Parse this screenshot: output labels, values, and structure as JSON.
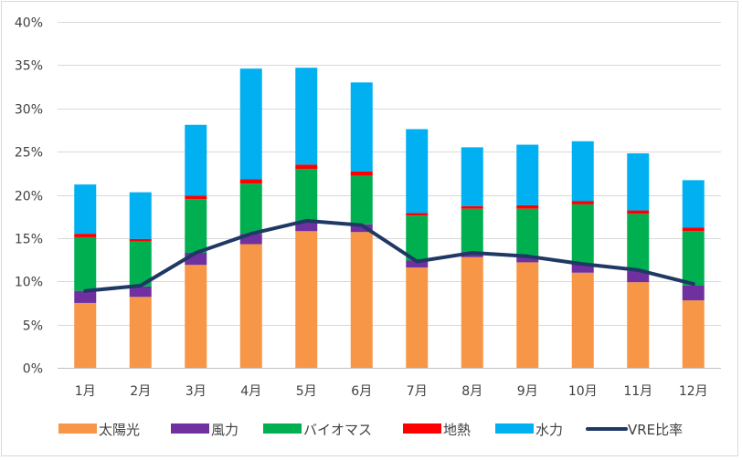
{
  "chart_data": {
    "type": "bar",
    "stacked": true,
    "categories": [
      "1月",
      "2月",
      "3月",
      "4月",
      "5月",
      "6月",
      "7月",
      "8月",
      "9月",
      "10月",
      "11月",
      "12月"
    ],
    "ylim": [
      0,
      0.4
    ],
    "yticks": [
      0,
      0.05,
      0.1,
      0.15,
      0.2,
      0.25,
      0.3,
      0.35,
      0.4
    ],
    "ytick_labels": [
      "0%",
      "5%",
      "10%",
      "15%",
      "20%",
      "25%",
      "30%",
      "35%",
      "40%"
    ],
    "grid": true,
    "legend_position": "bottom",
    "series": [
      {
        "name": "太陽光",
        "color": "#F79646",
        "values": [
          0.075,
          0.082,
          0.119,
          0.143,
          0.158,
          0.157,
          0.116,
          0.128,
          0.122,
          0.11,
          0.099,
          0.078
        ]
      },
      {
        "name": "風力",
        "color": "#7030A0",
        "values": [
          0.014,
          0.012,
          0.014,
          0.012,
          0.01,
          0.009,
          0.008,
          0.006,
          0.008,
          0.011,
          0.013,
          0.017
        ]
      },
      {
        "name": "バイオマス",
        "color": "#00B050",
        "values": [
          0.062,
          0.052,
          0.062,
          0.058,
          0.062,
          0.056,
          0.052,
          0.05,
          0.054,
          0.068,
          0.066,
          0.063
        ]
      },
      {
        "name": "地熱",
        "color": "#FF0000",
        "values": [
          0.004,
          0.003,
          0.004,
          0.005,
          0.005,
          0.005,
          0.003,
          0.003,
          0.004,
          0.004,
          0.004,
          0.004
        ]
      },
      {
        "name": "水力",
        "color": "#00B0F0",
        "values": [
          0.057,
          0.054,
          0.082,
          0.128,
          0.112,
          0.103,
          0.097,
          0.068,
          0.07,
          0.069,
          0.066,
          0.055
        ]
      }
    ],
    "line": {
      "name": "VRE比率",
      "color": "#1F3864",
      "values": [
        0.089,
        0.095,
        0.133,
        0.155,
        0.17,
        0.165,
        0.123,
        0.133,
        0.129,
        0.12,
        0.113,
        0.097
      ]
    }
  }
}
